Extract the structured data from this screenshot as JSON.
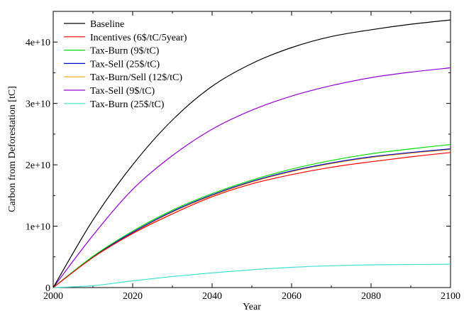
{
  "chart_data": {
    "type": "line",
    "title": "",
    "xlabel": "Year",
    "ylabel": "Carbon from Deforestation [tC]",
    "xlim": [
      2000,
      2100
    ],
    "ylim": [
      0,
      45000000000
    ],
    "x_ticks": [
      2000,
      2020,
      2040,
      2060,
      2080,
      2100
    ],
    "x_tick_labels": [
      "2000",
      "2020",
      "2040",
      "2060",
      "2080",
      "2100"
    ],
    "y_ticks": [
      0,
      10000000000,
      20000000000,
      30000000000,
      40000000000
    ],
    "y_tick_labels": [
      "0",
      "1e+10",
      "2e+10",
      "3e+10",
      "4e+10"
    ],
    "grid": false,
    "legend_position": "top-left",
    "x": [
      2000,
      2010,
      2020,
      2030,
      2040,
      2050,
      2060,
      2070,
      2080,
      2090,
      2100
    ],
    "series": [
      {
        "name": "Baseline",
        "color": "#000000",
        "values": [
          0,
          11000000000,
          20000000000,
          27300000000,
          32800000000,
          36500000000,
          39100000000,
          40900000000,
          42000000000,
          42900000000,
          43600000000
        ]
      },
      {
        "name": "Incentives (6$/tC/5year)",
        "color": "#ff0000",
        "values": [
          0,
          4900000000,
          8800000000,
          12000000000,
          14800000000,
          16900000000,
          18400000000,
          19600000000,
          20500000000,
          21300000000,
          22000000000
        ]
      },
      {
        "name": "Tax-Burn (9$/tC)",
        "color": "#00dd00",
        "values": [
          0,
          5100000000,
          9200000000,
          12600000000,
          15300000000,
          17500000000,
          19300000000,
          20700000000,
          21800000000,
          22600000000,
          23300000000
        ]
      },
      {
        "name": "Tax-Sell (25$/tC)",
        "color": "#0000cc",
        "values": [
          0,
          5000000000,
          9000000000,
          12400000000,
          15100000000,
          17300000000,
          19000000000,
          20300000000,
          21300000000,
          22000000000,
          22600000000
        ]
      },
      {
        "name": "Tax-Burn/Sell (12$/tC)",
        "color": "#ffa500",
        "values": [
          0,
          4950000000,
          8900000000,
          12300000000,
          15000000000,
          17200000000,
          18900000000,
          20200000000,
          21200000000,
          21900000000,
          22500000000
        ]
      },
      {
        "name": "Tax-Sell (9$/tC)",
        "color": "#9400d3",
        "values": [
          0,
          8500000000,
          16000000000,
          21500000000,
          25800000000,
          28900000000,
          31200000000,
          32900000000,
          34200000000,
          35100000000,
          35800000000
        ]
      },
      {
        "name": "Tax-Burn (25$/tC)",
        "color": "#40e0d0",
        "values": [
          0,
          300000000,
          1100000000,
          1800000000,
          2400000000,
          2900000000,
          3300000000,
          3550000000,
          3700000000,
          3750000000,
          3800000000
        ]
      }
    ]
  }
}
